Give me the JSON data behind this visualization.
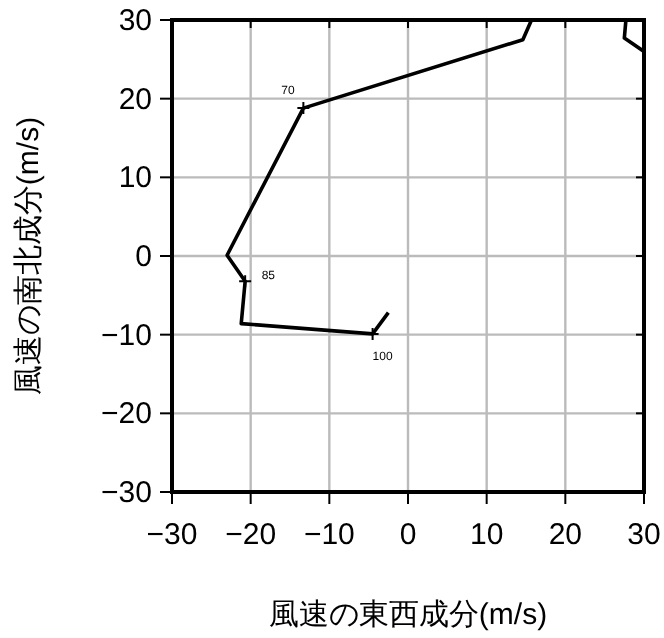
{
  "chart_data": {
    "type": "line",
    "xlabel": "風速の東西成分(m/s)",
    "ylabel": "風速の南北成分(m/s)",
    "series": [
      {
        "color": "#000000",
        "x": [
          -2.5,
          -4.5,
          -21.2,
          -20.7,
          -23.0,
          -13.3,
          14.6,
          15.7,
          21.7,
          27.7,
          27.5,
          30
        ],
        "values": [
          -7.2,
          -9.9,
          -8.6,
          -3.2,
          0.1,
          18.8,
          27.5,
          30,
          null,
          30,
          27.7,
          26.0
        ]
      }
    ],
    "xlim": [
      -30,
      30
    ],
    "ylim": [
      -30,
      30
    ],
    "xticks": [
      {
        "value": -30,
        "label": "−30"
      },
      {
        "value": -20,
        "label": "−20"
      },
      {
        "value": -10,
        "label": "−10"
      },
      0,
      10,
      20,
      30
    ],
    "yticks": [
      {
        "value": -30,
        "label": "−30"
      },
      {
        "value": -20,
        "label": "−20"
      },
      {
        "value": -10,
        "label": "−10"
      },
      0,
      10,
      20,
      30
    ],
    "grid": true,
    "annotations": [
      {
        "text": "70",
        "x": -13.3,
        "y": 18.8
      },
      {
        "text": "85",
        "x": -20.7,
        "y": -3.2
      },
      {
        "text": "100",
        "x": -4.5,
        "y": -9.9
      }
    ]
  }
}
